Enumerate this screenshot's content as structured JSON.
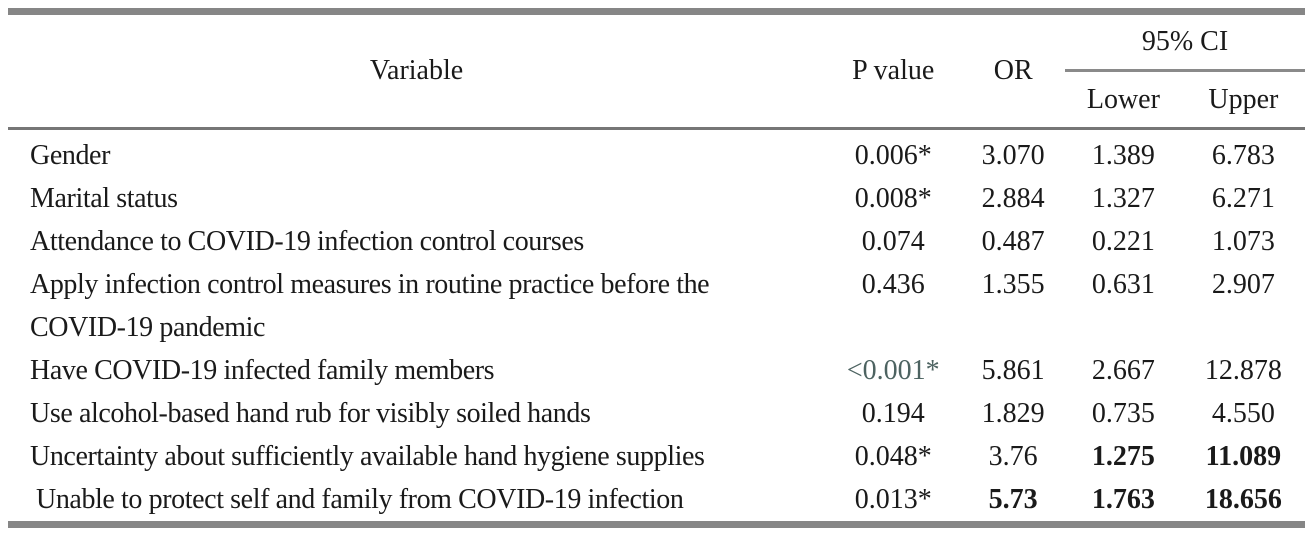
{
  "table": {
    "header": {
      "variable": "Variable",
      "p_value": "P value",
      "or": "OR",
      "ci": "95% CI",
      "ci_lower": "Lower",
      "ci_upper": "Upper"
    },
    "rows": [
      {
        "variable": "Gender",
        "p": "0.006*",
        "or": "3.070",
        "lower": "1.389",
        "upper": "6.783"
      },
      {
        "variable": "Marital status",
        "p": "0.008*",
        "or": "2.884",
        "lower": "1.327",
        "upper": "6.271"
      },
      {
        "variable": "Attendance to COVID-19 infection control courses",
        "p": "0.074",
        "or": "0.487",
        "lower": "0.221",
        "upper": "1.073"
      },
      {
        "variable": "Apply infection control measures in routine practice before the\nCOVID-19 pandemic",
        "p": "0.436",
        "or": "1.355",
        "lower": "0.631",
        "upper": "2.907"
      },
      {
        "variable": "Have COVID-19 infected family members",
        "p": "<0.001*",
        "or": "5.861",
        "lower": "2.667",
        "upper": "12.878"
      },
      {
        "variable": "Use alcohol-based hand rub for visibly soiled hands",
        "p": "0.194",
        "or": "1.829",
        "lower": "0.735",
        "upper": "4.550"
      },
      {
        "variable": "Uncertainty about sufficiently available hand hygiene supplies",
        "p": "0.048*",
        "or": "3.76",
        "lower": "1.275",
        "upper": "11.089"
      },
      {
        "variable": "Unable to protect self and family from COVID-19 infection",
        "p": "0.013*",
        "or": "5.73",
        "lower": "1.763",
        "upper": "18.656"
      }
    ],
    "colors": {
      "rule_gray": "#868686",
      "header_rule": "#767676",
      "text": "#1a1a1a",
      "significant_p_highlight": "#4d6361"
    }
  }
}
